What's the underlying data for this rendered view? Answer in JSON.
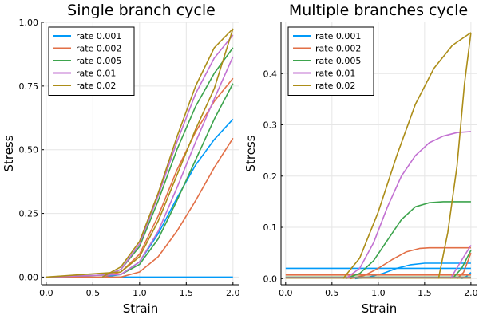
{
  "chart_data": [
    {
      "type": "line",
      "title": "Single branch cycle",
      "xlabel": "Strain",
      "ylabel": "Stress",
      "xlim": [
        -0.05,
        2.07
      ],
      "ylim": [
        -0.03,
        1.0
      ],
      "xticks": [
        0.0,
        0.5,
        1.0,
        1.5,
        2.0
      ],
      "xtick_labels": [
        "0.0",
        "0.5",
        "1.0",
        "1.5",
        "2.0"
      ],
      "yticks": [
        0.0,
        0.25,
        0.5,
        0.75,
        1.0
      ],
      "ytick_labels": [
        "0.00",
        "0.25",
        "0.50",
        "0.75",
        "1.00"
      ],
      "grid": true,
      "legend_position": "top-left",
      "series": [
        {
          "name": "rate 0.001",
          "color": "#009af9",
          "paths": [
            [
              [
                0.0,
                0.0
              ],
              [
                2.0,
                0.0
              ]
            ],
            [
              [
                0.6,
                0.0
              ],
              [
                0.8,
                0.01
              ],
              [
                1.0,
                0.06
              ],
              [
                1.2,
                0.17
              ],
              [
                1.4,
                0.31
              ],
              [
                1.6,
                0.44
              ],
              [
                1.8,
                0.54
              ],
              [
                2.0,
                0.62
              ]
            ]
          ]
        },
        {
          "name": "rate 0.002",
          "color": "#e26f46",
          "paths": [
            [
              [
                0.0,
                0.0
              ],
              [
                0.8,
                0.0
              ],
              [
                1.0,
                0.02
              ],
              [
                1.2,
                0.08
              ],
              [
                1.4,
                0.18
              ],
              [
                1.6,
                0.3
              ],
              [
                1.8,
                0.43
              ],
              [
                2.0,
                0.545
              ]
            ],
            [
              [
                0.6,
                0.0
              ],
              [
                0.8,
                0.02
              ],
              [
                1.0,
                0.09
              ],
              [
                1.2,
                0.24
              ],
              [
                1.4,
                0.42
              ],
              [
                1.6,
                0.57
              ],
              [
                1.8,
                0.69
              ],
              [
                2.0,
                0.78
              ]
            ]
          ]
        },
        {
          "name": "rate 0.005",
          "color": "#3da44d",
          "paths": [
            [
              [
                0.0,
                0.0
              ],
              [
                0.8,
                0.01
              ],
              [
                1.0,
                0.05
              ],
              [
                1.2,
                0.15
              ],
              [
                1.4,
                0.3
              ],
              [
                1.6,
                0.46
              ],
              [
                1.8,
                0.62
              ],
              [
                2.0,
                0.76
              ]
            ],
            [
              [
                0.6,
                0.0
              ],
              [
                0.8,
                0.03
              ],
              [
                1.0,
                0.12
              ],
              [
                1.2,
                0.3
              ],
              [
                1.4,
                0.5
              ],
              [
                1.6,
                0.67
              ],
              [
                1.8,
                0.8
              ],
              [
                2.0,
                0.9
              ]
            ]
          ]
        },
        {
          "name": "rate 0.01",
          "color": "#c271d2",
          "paths": [
            [
              [
                0.0,
                0.0
              ],
              [
                0.8,
                0.01
              ],
              [
                1.0,
                0.06
              ],
              [
                1.2,
                0.18
              ],
              [
                1.4,
                0.35
              ],
              [
                1.6,
                0.53
              ],
              [
                1.8,
                0.7
              ],
              [
                2.0,
                0.865
              ]
            ],
            [
              [
                0.6,
                0.0
              ],
              [
                0.8,
                0.03
              ],
              [
                1.0,
                0.13
              ],
              [
                1.2,
                0.32
              ],
              [
                1.4,
                0.53
              ],
              [
                1.6,
                0.72
              ],
              [
                1.8,
                0.86
              ],
              [
                2.0,
                0.95
              ]
            ]
          ]
        },
        {
          "name": "rate 0.02",
          "color": "#ac8d18",
          "paths": [
            [
              [
                0.0,
                0.0
              ],
              [
                0.8,
                0.02
              ],
              [
                1.0,
                0.08
              ],
              [
                1.2,
                0.22
              ],
              [
                1.4,
                0.4
              ],
              [
                1.6,
                0.58
              ],
              [
                1.8,
                0.74
              ],
              [
                2.0,
                0.975
              ]
            ],
            [
              [
                0.6,
                0.0
              ],
              [
                0.8,
                0.04
              ],
              [
                1.0,
                0.14
              ],
              [
                1.2,
                0.33
              ],
              [
                1.4,
                0.55
              ],
              [
                1.6,
                0.75
              ],
              [
                1.8,
                0.9
              ],
              [
                2.0,
                0.975
              ]
            ]
          ]
        }
      ]
    },
    {
      "type": "line",
      "title": "Multiple branches cycle",
      "xlabel": "Strain",
      "ylabel": "Stress",
      "xlim": [
        -0.05,
        2.07
      ],
      "ylim": [
        -0.012,
        0.5
      ],
      "xticks": [
        0.0,
        0.5,
        1.0,
        1.5,
        2.0
      ],
      "xtick_labels": [
        "0.0",
        "0.5",
        "1.0",
        "1.5",
        "2.0"
      ],
      "yticks": [
        0.0,
        0.1,
        0.2,
        0.3,
        0.4
      ],
      "ytick_labels": [
        "0.0",
        "0.1",
        "0.2",
        "0.3",
        "0.4"
      ],
      "grid": true,
      "legend_position": "top-left",
      "series": [
        {
          "name": "rate 0.001",
          "color": "#009af9",
          "paths": [
            [
              [
                0.0,
                0.02
              ],
              [
                2.0,
                0.02
              ]
            ],
            [
              [
                0.75,
                0.0
              ],
              [
                0.9,
                0.003
              ],
              [
                1.05,
                0.01
              ],
              [
                1.2,
                0.02
              ],
              [
                1.35,
                0.027
              ],
              [
                1.5,
                0.03
              ],
              [
                2.0,
                0.03
              ]
            ],
            [
              [
                1.9,
                0.0
              ],
              [
                1.95,
                0.004
              ],
              [
                2.0,
                0.012
              ]
            ]
          ]
        },
        {
          "name": "rate 0.002",
          "color": "#e26f46",
          "paths": [
            [
              [
                0.0,
                0.007
              ],
              [
                2.0,
                0.007
              ]
            ],
            [
              [
                0.7,
                0.0
              ],
              [
                0.85,
                0.006
              ],
              [
                1.0,
                0.02
              ],
              [
                1.15,
                0.037
              ],
              [
                1.3,
                0.052
              ],
              [
                1.45,
                0.059
              ],
              [
                1.55,
                0.06
              ],
              [
                2.0,
                0.06
              ]
            ],
            [
              [
                1.85,
                0.0
              ],
              [
                1.92,
                0.012
              ],
              [
                2.0,
                0.05
              ]
            ]
          ]
        },
        {
          "name": "rate 0.005",
          "color": "#3da44d",
          "paths": [
            [
              [
                0.0,
                0.003
              ],
              [
                2.0,
                0.003
              ]
            ],
            [
              [
                0.65,
                0.0
              ],
              [
                0.8,
                0.01
              ],
              [
                0.95,
                0.035
              ],
              [
                1.1,
                0.075
              ],
              [
                1.25,
                0.115
              ],
              [
                1.4,
                0.14
              ],
              [
                1.55,
                0.148
              ],
              [
                1.7,
                0.15
              ],
              [
                2.0,
                0.15
              ]
            ],
            [
              [
                1.8,
                0.0
              ],
              [
                1.9,
                0.02
              ],
              [
                2.0,
                0.055
              ]
            ]
          ]
        },
        {
          "name": "rate 0.01",
          "color": "#c271d2",
          "paths": [
            [
              [
                0.0,
                0.002
              ],
              [
                2.0,
                0.002
              ]
            ],
            [
              [
                0.65,
                0.0
              ],
              [
                0.8,
                0.02
              ],
              [
                0.95,
                0.07
              ],
              [
                1.1,
                0.14
              ],
              [
                1.25,
                0.2
              ],
              [
                1.4,
                0.24
              ],
              [
                1.55,
                0.265
              ],
              [
                1.7,
                0.278
              ],
              [
                1.85,
                0.285
              ],
              [
                2.0,
                0.287
              ]
            ],
            [
              [
                1.78,
                0.0
              ],
              [
                1.88,
                0.03
              ],
              [
                2.0,
                0.065
              ]
            ]
          ]
        },
        {
          "name": "rate 0.02",
          "color": "#ac8d18",
          "paths": [
            [
              [
                0.0,
                0.001
              ],
              [
                2.0,
                0.001
              ]
            ],
            [
              [
                0.62,
                0.0
              ],
              [
                0.8,
                0.04
              ],
              [
                1.0,
                0.13
              ],
              [
                1.2,
                0.24
              ],
              [
                1.4,
                0.34
              ],
              [
                1.6,
                0.41
              ],
              [
                1.8,
                0.455
              ],
              [
                2.0,
                0.48
              ]
            ],
            [
              [
                1.65,
                0.0
              ],
              [
                1.75,
                0.09
              ],
              [
                1.85,
                0.22
              ],
              [
                1.93,
                0.38
              ],
              [
                2.0,
                0.48
              ]
            ]
          ]
        }
      ]
    }
  ]
}
